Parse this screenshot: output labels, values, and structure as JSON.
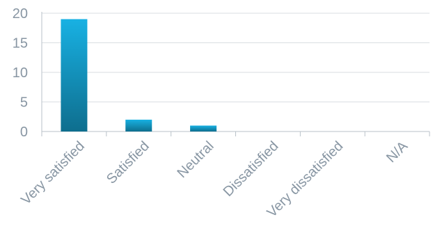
{
  "chart_data": {
    "type": "bar",
    "categories": [
      "Very satisfied",
      "Satisfied",
      "Neutral",
      "Dissatisfied",
      "Very dissatisfied",
      "N/A"
    ],
    "values": [
      19,
      2,
      1,
      0,
      0,
      0
    ],
    "ylim": [
      0,
      20
    ],
    "yticks": [
      0,
      5,
      10,
      15,
      20
    ],
    "grid": true,
    "legend": "none",
    "colors": {
      "bar_top": "#18b1e3",
      "bar_bottom": "#0e6e8e",
      "grid": "#d9dee2",
      "axis": "#b9c2c9",
      "label": "#8896a3"
    }
  }
}
